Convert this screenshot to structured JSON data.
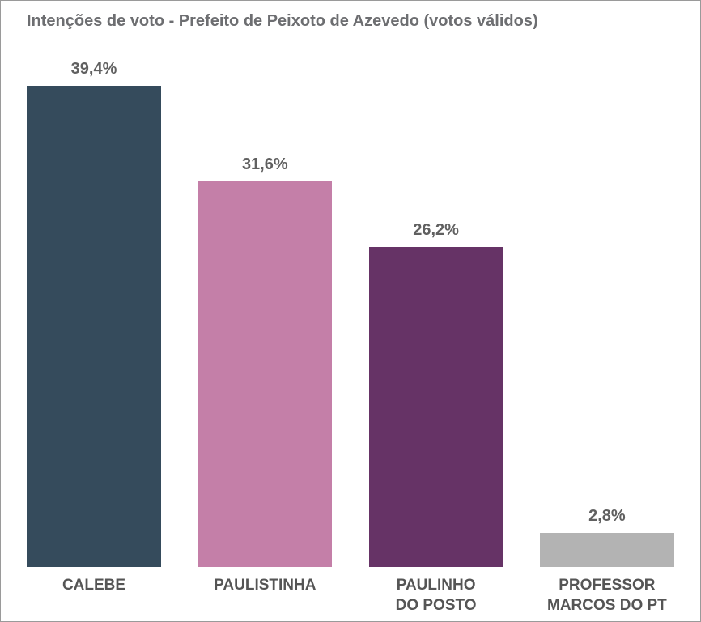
{
  "chart_data": {
    "type": "bar",
    "title": "Intenções de voto - Prefeito de Peixoto de Azevedo (votos válidos)",
    "categories": [
      "CALEBE",
      "PAULISTINHA",
      "PAULINHO\nDO POSTO",
      "PROFESSOR\nMARCOS DO PT"
    ],
    "values": [
      39.4,
      31.6,
      26.2,
      2.8
    ],
    "value_labels": [
      "39,4%",
      "31,6%",
      "26,2%",
      "2,8%"
    ],
    "colors": [
      "#354b5c",
      "#c47fa8",
      "#663366",
      "#b3b3b3"
    ]
  }
}
